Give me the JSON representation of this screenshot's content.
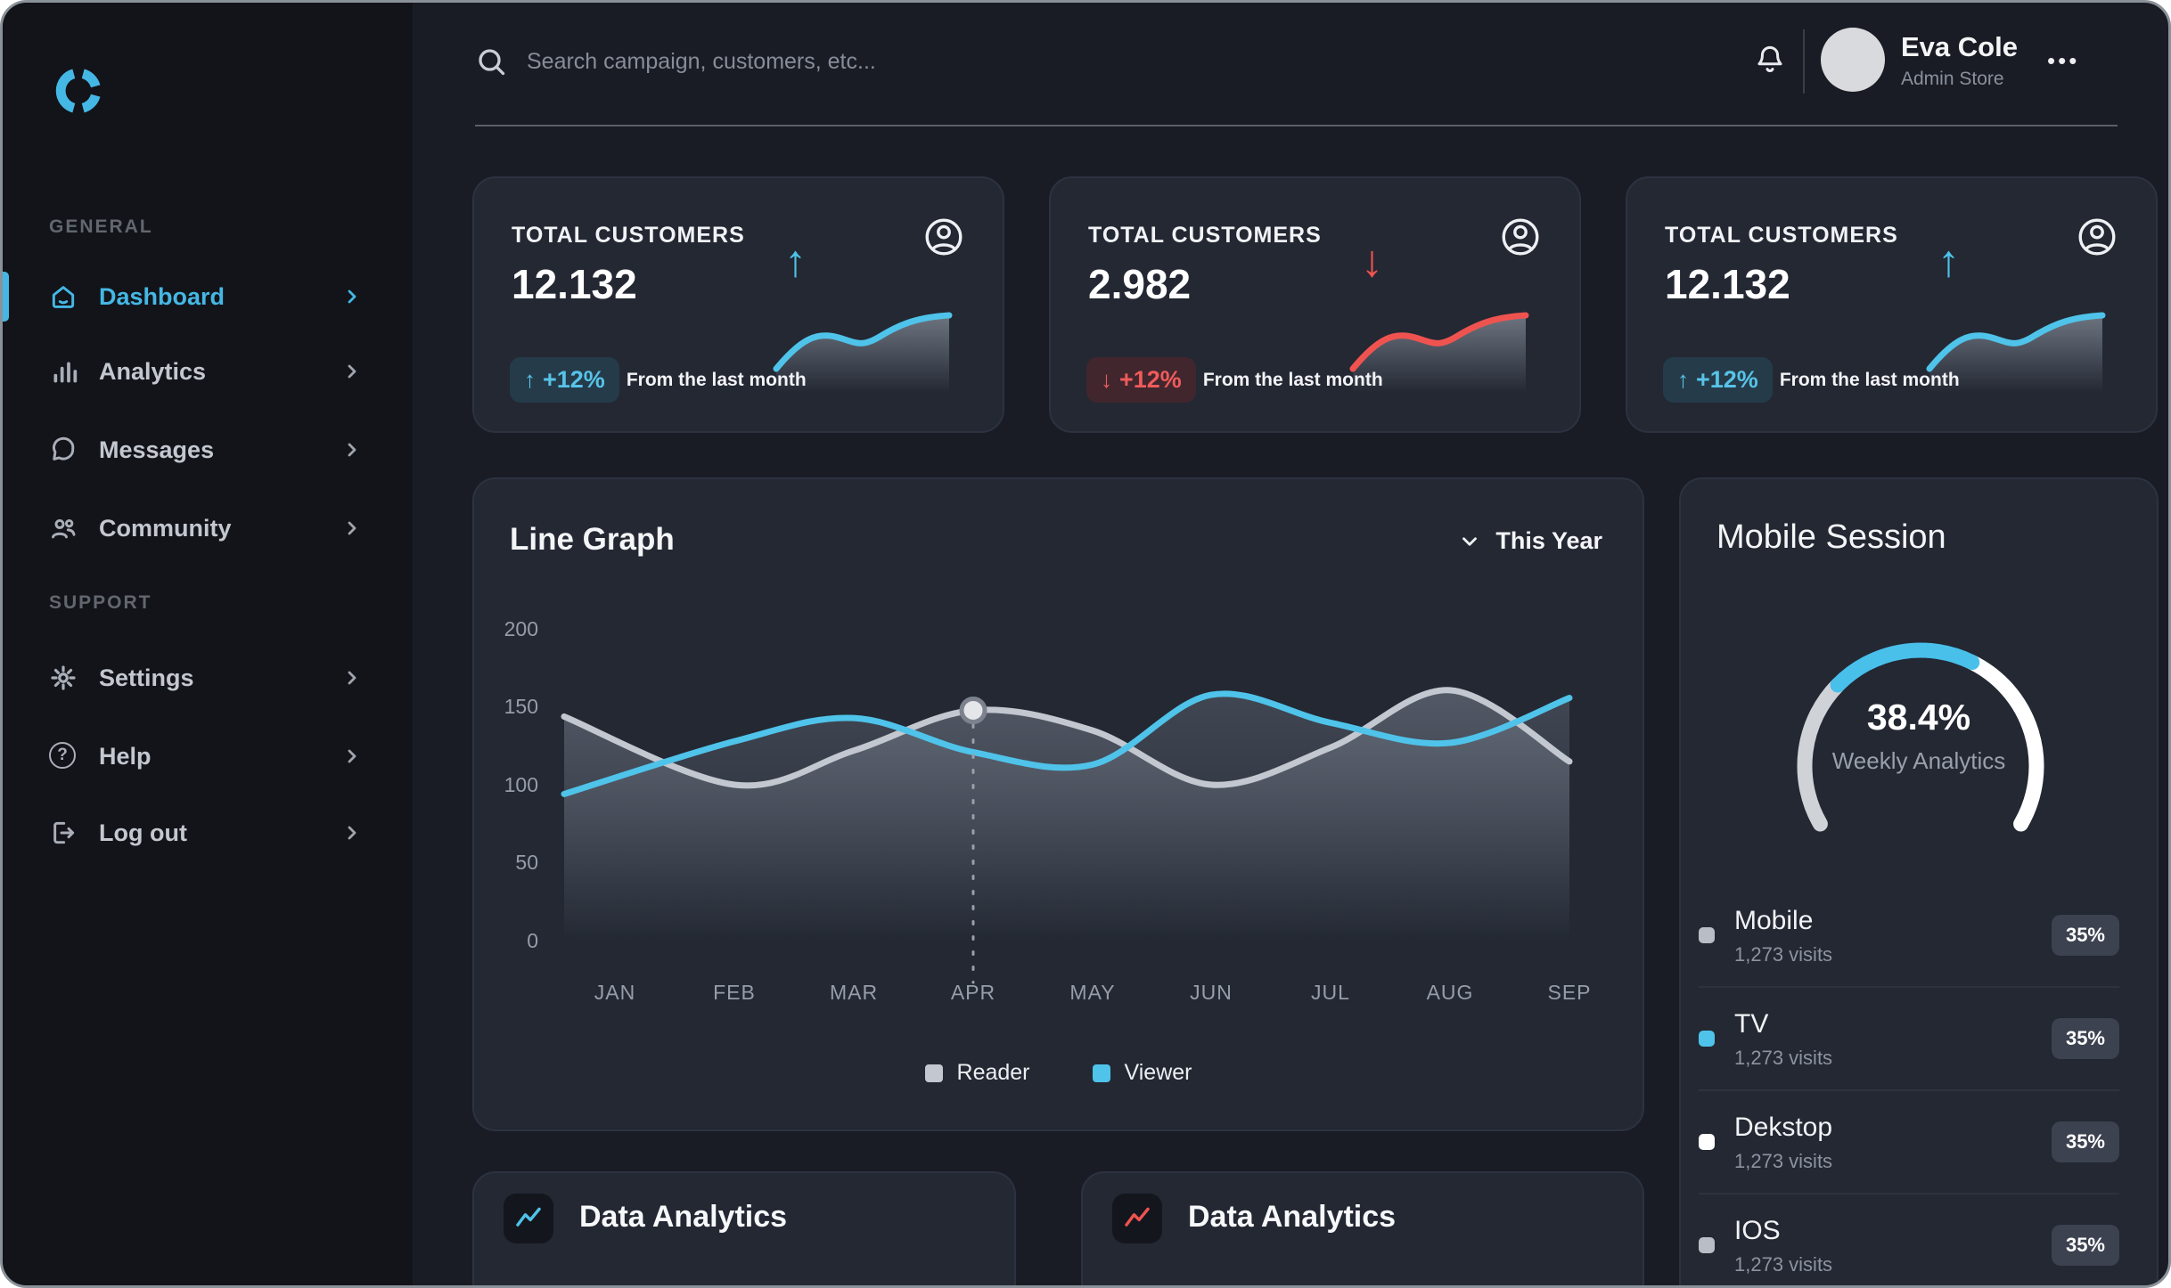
{
  "topbar": {
    "search_placeholder": "Search campaign, customers, etc...",
    "user_name": "Eva Cole",
    "user_role": "Admin Store",
    "menu_dots": "•••"
  },
  "sidebar": {
    "sections": [
      {
        "label": "GENERAL",
        "items": [
          {
            "label": "Dashboard",
            "icon": "home-icon",
            "active": true
          },
          {
            "label": "Analytics",
            "icon": "bar-chart-icon",
            "active": false
          },
          {
            "label": "Messages",
            "icon": "chat-bubble-icon",
            "active": false
          },
          {
            "label": "Community",
            "icon": "people-icon",
            "active": false
          }
        ]
      },
      {
        "label": "SUPPORT",
        "items": [
          {
            "label": "Settings",
            "icon": "gear-icon",
            "active": false
          },
          {
            "label": "Help",
            "icon": "question-circle-icon",
            "active": false
          },
          {
            "label": "Log out",
            "icon": "logout-icon",
            "active": false
          }
        ]
      }
    ]
  },
  "stat_cards": [
    {
      "label": "TOTAL CUSTOMERS",
      "value": "12.132",
      "arrow": "↑",
      "badge": "+12%",
      "caption": "From the last month",
      "trend": "up"
    },
    {
      "label": "TOTAL CUSTOMERS",
      "value": "2.982",
      "arrow": "↓",
      "badge": "+12%",
      "caption": "From the last month",
      "trend": "down"
    },
    {
      "label": "TOTAL CUSTOMERS",
      "value": "12.132",
      "arrow": "↑",
      "badge": "+12%",
      "caption": "From the last month",
      "trend": "up"
    }
  ],
  "line_graph": {
    "title": "Line Graph",
    "range_label": "This Year",
    "y_ticks": [
      "200",
      "150",
      "100",
      "50",
      "0"
    ]
  },
  "mobile_session": {
    "title": "Mobile Session",
    "gauge_percent": "38.4%",
    "gauge_caption": "Weekly Analytics",
    "items": [
      {
        "name": "Mobile",
        "visits": "1,273 visits",
        "share": "35%",
        "color": "#b9bdc6"
      },
      {
        "name": "TV",
        "visits": "1,273 visits",
        "share": "35%",
        "color": "#4fc3e9"
      },
      {
        "name": "Dekstop",
        "visits": "1,273 visits",
        "share": "35%",
        "color": "#ffffff"
      },
      {
        "name": "IOS",
        "visits": "1,273 visits",
        "share": "35%",
        "color": "#b9bdc6"
      }
    ]
  },
  "bottom_cards": [
    {
      "title": "Data Analytics",
      "accent": "#4fc3e9"
    },
    {
      "title": "Data Analytics",
      "accent": "#ef5350"
    }
  ],
  "colors": {
    "accent_blue": "#4fc3e9",
    "accent_red": "#ef5350",
    "sidebar_active": "#45b7e5",
    "page_bg": "#191c25",
    "sidebar_bg": "#121419",
    "card_bg": "#232833"
  },
  "chart_data": [
    {
      "type": "line",
      "title": "Line Graph",
      "x": [
        "JAN",
        "FEB",
        "MAR",
        "APR",
        "MAY",
        "JUN",
        "JUL",
        "AUG",
        "SEP"
      ],
      "ylim": [
        0,
        200
      ],
      "y_ticks": [
        200,
        150,
        100,
        50,
        0
      ],
      "grid": false,
      "legend_position": "bottom",
      "series": [
        {
          "name": "Reader",
          "color": "#c3c7cf",
          "values": [
            144,
            100,
            122,
            148,
            135,
            100,
            124,
            161,
            115
          ]
        },
        {
          "name": "Viewer",
          "color": "#4fc3e9",
          "values": [
            94,
            128,
            143,
            121,
            113,
            158,
            140,
            127,
            156
          ]
        }
      ],
      "marker": {
        "series": "Reader",
        "x": "APR",
        "value": 148
      }
    },
    {
      "type": "gauge",
      "percent": 38.4,
      "label": "Weekly Analytics",
      "start_deg": 210,
      "sweep_deg": 240,
      "segments": [
        {
          "name": "left",
          "color": "#cfd2d7",
          "pct": 31
        },
        {
          "name": "highlight",
          "color": "#49c0ea",
          "pct": 30
        },
        {
          "name": "right",
          "color": "#ffffff",
          "pct": 39
        }
      ]
    }
  ]
}
